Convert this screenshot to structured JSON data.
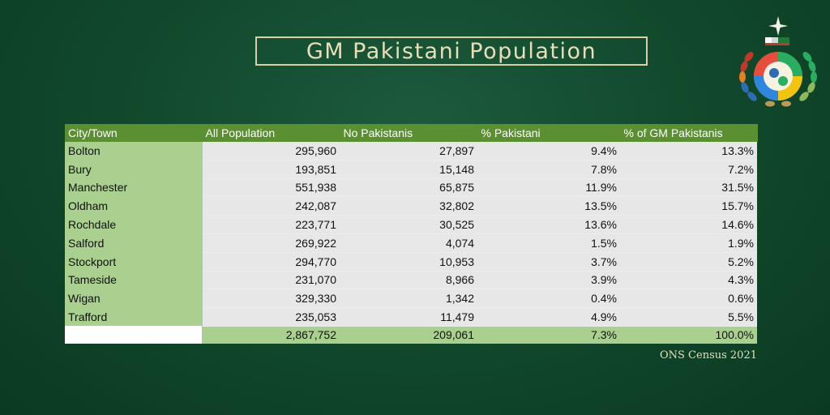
{
  "title": "GM Pakistani Population",
  "source": "ONS Census 2021",
  "colors": {
    "background": "#124a2d",
    "header_green": "#5a8f32",
    "light_green": "#a9d08e",
    "cell_grey": "#e7e7e7",
    "title_text": "#e8dfb8"
  },
  "logo": {
    "icon": "community-emblem-icon"
  },
  "chart_data": {
    "type": "table",
    "title": "GM Pakistani Population",
    "columns": [
      "City/Town",
      "All Population",
      "No Pakistanis",
      "% Pakistani",
      "% of GM Pakistanis"
    ],
    "rows": [
      [
        "Bolton",
        "295,960",
        "27,897",
        "9.4%",
        "13.3%"
      ],
      [
        "Bury",
        "193,851",
        "15,148",
        "7.8%",
        "7.2%"
      ],
      [
        "Manchester",
        "551,938",
        "65,875",
        "11.9%",
        "31.5%"
      ],
      [
        "Oldham",
        "242,087",
        "32,802",
        "13.5%",
        "15.7%"
      ],
      [
        "Rochdale",
        "223,771",
        "30,525",
        "13.6%",
        "14.6%"
      ],
      [
        "Salford",
        "269,922",
        "4,074",
        "1.5%",
        "1.9%"
      ],
      [
        "Stockport",
        "294,770",
        "10,953",
        "3.7%",
        "5.2%"
      ],
      [
        "Tameside",
        "231,070",
        "8,966",
        "3.9%",
        "4.3%"
      ],
      [
        "Wigan",
        "329,330",
        "1,342",
        "0.4%",
        "0.6%"
      ],
      [
        "Trafford",
        "235,053",
        "11,479",
        "4.9%",
        "5.5%"
      ]
    ],
    "total": [
      "",
      "2,867,752",
      "209,061",
      "7.3%",
      "100.0%"
    ]
  }
}
